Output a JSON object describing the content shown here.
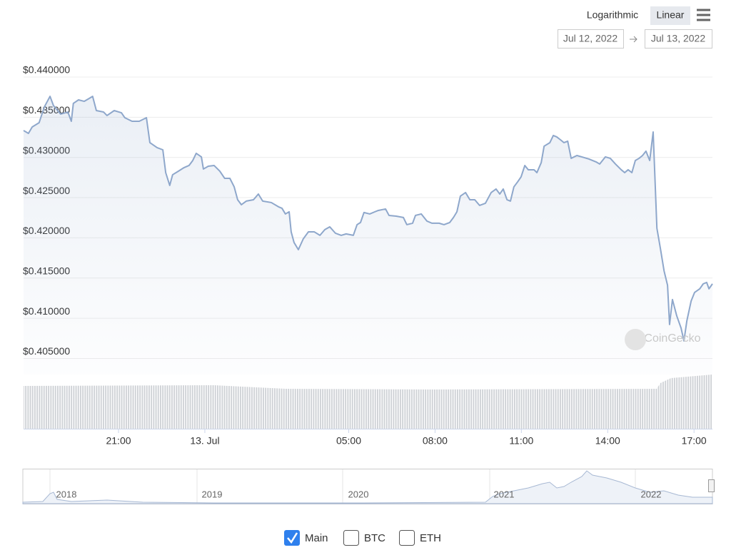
{
  "chart_data": {
    "type": "line",
    "scale_buttons": [
      "Logarithmic",
      "Linear"
    ],
    "log_scale": false,
    "range": [
      "Jul 12, 2022",
      "Jul 13, 2022"
    ],
    "watermark": "CoinGecko",
    "grid": true,
    "xlim": [
      17.7,
      41.64
    ],
    "xticks": [
      {
        "value": 21,
        "label": "21:00"
      },
      {
        "value": 24,
        "label": "13. Jul"
      },
      {
        "value": 29,
        "label": "05:00"
      },
      {
        "value": 32,
        "label": "08:00"
      },
      {
        "value": 35,
        "label": "11:00"
      },
      {
        "value": 38,
        "label": "14:00"
      },
      {
        "value": 41,
        "label": "17:00"
      }
    ],
    "ylim": [
      0.403,
      0.44
    ],
    "yticks": [
      {
        "value": 0.44,
        "label": "$0.440000"
      },
      {
        "value": 0.435,
        "label": "$0.435000"
      },
      {
        "value": 0.43,
        "label": "$0.430000"
      },
      {
        "value": 0.425,
        "label": "$0.425000"
      },
      {
        "value": 0.42,
        "label": "$0.420000"
      },
      {
        "value": 0.415,
        "label": "$0.415000"
      },
      {
        "value": 0.41,
        "label": "$0.410000"
      },
      {
        "value": 0.405,
        "label": "$0.405000"
      }
    ],
    "x": [
      17.7,
      17.87,
      18.0,
      18.24,
      18.42,
      18.62,
      18.74,
      18.99,
      19.24,
      19.36,
      19.43,
      19.61,
      19.81,
      19.98,
      20.1,
      20.23,
      20.48,
      20.6,
      20.85,
      21.1,
      21.22,
      21.47,
      21.72,
      21.97,
      22.09,
      22.34,
      22.54,
      22.64,
      22.78,
      22.88,
      23.08,
      23.28,
      23.45,
      23.58,
      23.7,
      23.88,
      23.95,
      24.12,
      24.32,
      24.52,
      24.69,
      24.87,
      25.02,
      25.14,
      25.27,
      25.44,
      25.69,
      25.86,
      26.01,
      26.31,
      26.56,
      26.68,
      26.8,
      26.93,
      27.0,
      27.1,
      27.25,
      27.42,
      27.6,
      27.8,
      28.0,
      28.17,
      28.34,
      28.54,
      28.74,
      28.91,
      29.16,
      29.29,
      29.41,
      29.53,
      29.73,
      29.91,
      30.03,
      30.28,
      30.4,
      30.65,
      30.9,
      31.02,
      31.22,
      31.32,
      31.52,
      31.72,
      31.89,
      32.14,
      32.31,
      32.51,
      32.64,
      32.76,
      32.88,
      33.06,
      33.21,
      33.38,
      33.55,
      33.75,
      33.95,
      34.12,
      34.25,
      34.37,
      34.5,
      34.62,
      34.74,
      34.87,
      34.99,
      35.12,
      35.24,
      35.44,
      35.54,
      35.69,
      35.79,
      35.99,
      36.11,
      36.23,
      36.36,
      36.48,
      36.61,
      36.73,
      36.93,
      37.1,
      37.35,
      37.6,
      37.72,
      37.92,
      38.09,
      38.27,
      38.47,
      38.59,
      38.71,
      38.84,
      38.96,
      39.09,
      39.21,
      39.33,
      39.46,
      39.58,
      39.71,
      39.83,
      39.96,
      40.08,
      40.15,
      40.25,
      40.4,
      40.55,
      40.65,
      40.75,
      40.9,
      41.02,
      41.2,
      41.32,
      41.44,
      41.52,
      41.64
    ],
    "series": [
      {
        "name": "Main",
        "color": "#8ea7cb",
        "values": [
          0.43335,
          0.43299,
          0.43379,
          0.43432,
          0.43627,
          0.4376,
          0.43645,
          0.43539,
          0.43565,
          0.4345,
          0.43672,
          0.43716,
          0.43698,
          0.43734,
          0.4376,
          0.43583,
          0.43565,
          0.43521,
          0.43583,
          0.43556,
          0.43494,
          0.4345,
          0.4345,
          0.43494,
          0.43184,
          0.43122,
          0.43095,
          0.42811,
          0.42652,
          0.42785,
          0.42829,
          0.42874,
          0.429,
          0.42962,
          0.43051,
          0.43007,
          0.42856,
          0.42891,
          0.429,
          0.42829,
          0.4274,
          0.4274,
          0.42634,
          0.42474,
          0.42412,
          0.42457,
          0.42474,
          0.42545,
          0.42457,
          0.42439,
          0.42386,
          0.42368,
          0.42297,
          0.42324,
          0.42075,
          0.41942,
          0.41853,
          0.41987,
          0.42075,
          0.42075,
          0.42031,
          0.42102,
          0.42137,
          0.42057,
          0.42031,
          0.42049,
          0.42031,
          0.42164,
          0.42191,
          0.42315,
          0.42297,
          0.42324,
          0.42341,
          0.42359,
          0.42279,
          0.4227,
          0.42253,
          0.42164,
          0.42182,
          0.42279,
          0.42297,
          0.42208,
          0.42182,
          0.42182,
          0.42164,
          0.42191,
          0.42253,
          0.42324,
          0.42519,
          0.42563,
          0.42474,
          0.42474,
          0.42403,
          0.4243,
          0.42563,
          0.42607,
          0.42545,
          0.42607,
          0.42474,
          0.42457,
          0.42634,
          0.42696,
          0.42758,
          0.429,
          0.42847,
          0.42847,
          0.42811,
          0.42936,
          0.4314,
          0.43184,
          0.43273,
          0.43255,
          0.43219,
          0.43184,
          0.43202,
          0.42989,
          0.43024,
          0.43007,
          0.4298,
          0.42944,
          0.42918,
          0.43007,
          0.42989,
          0.42918,
          0.42847,
          0.42811,
          0.42847,
          0.42811,
          0.42962,
          0.42989,
          0.43024,
          0.43078,
          0.42962,
          0.43317,
          0.4212,
          0.41871,
          0.41587,
          0.4141,
          0.40922,
          0.41233,
          0.41029,
          0.40878,
          0.40718,
          0.40966,
          0.41215,
          0.41321,
          0.41366,
          0.41428,
          0.41445,
          0.41366,
          0.41428
        ]
      }
    ],
    "compare": [
      "BTC",
      "ETH"
    ],
    "navigator_labels": [
      "2018",
      "2019",
      "2020",
      "2021",
      "2022"
    ]
  }
}
